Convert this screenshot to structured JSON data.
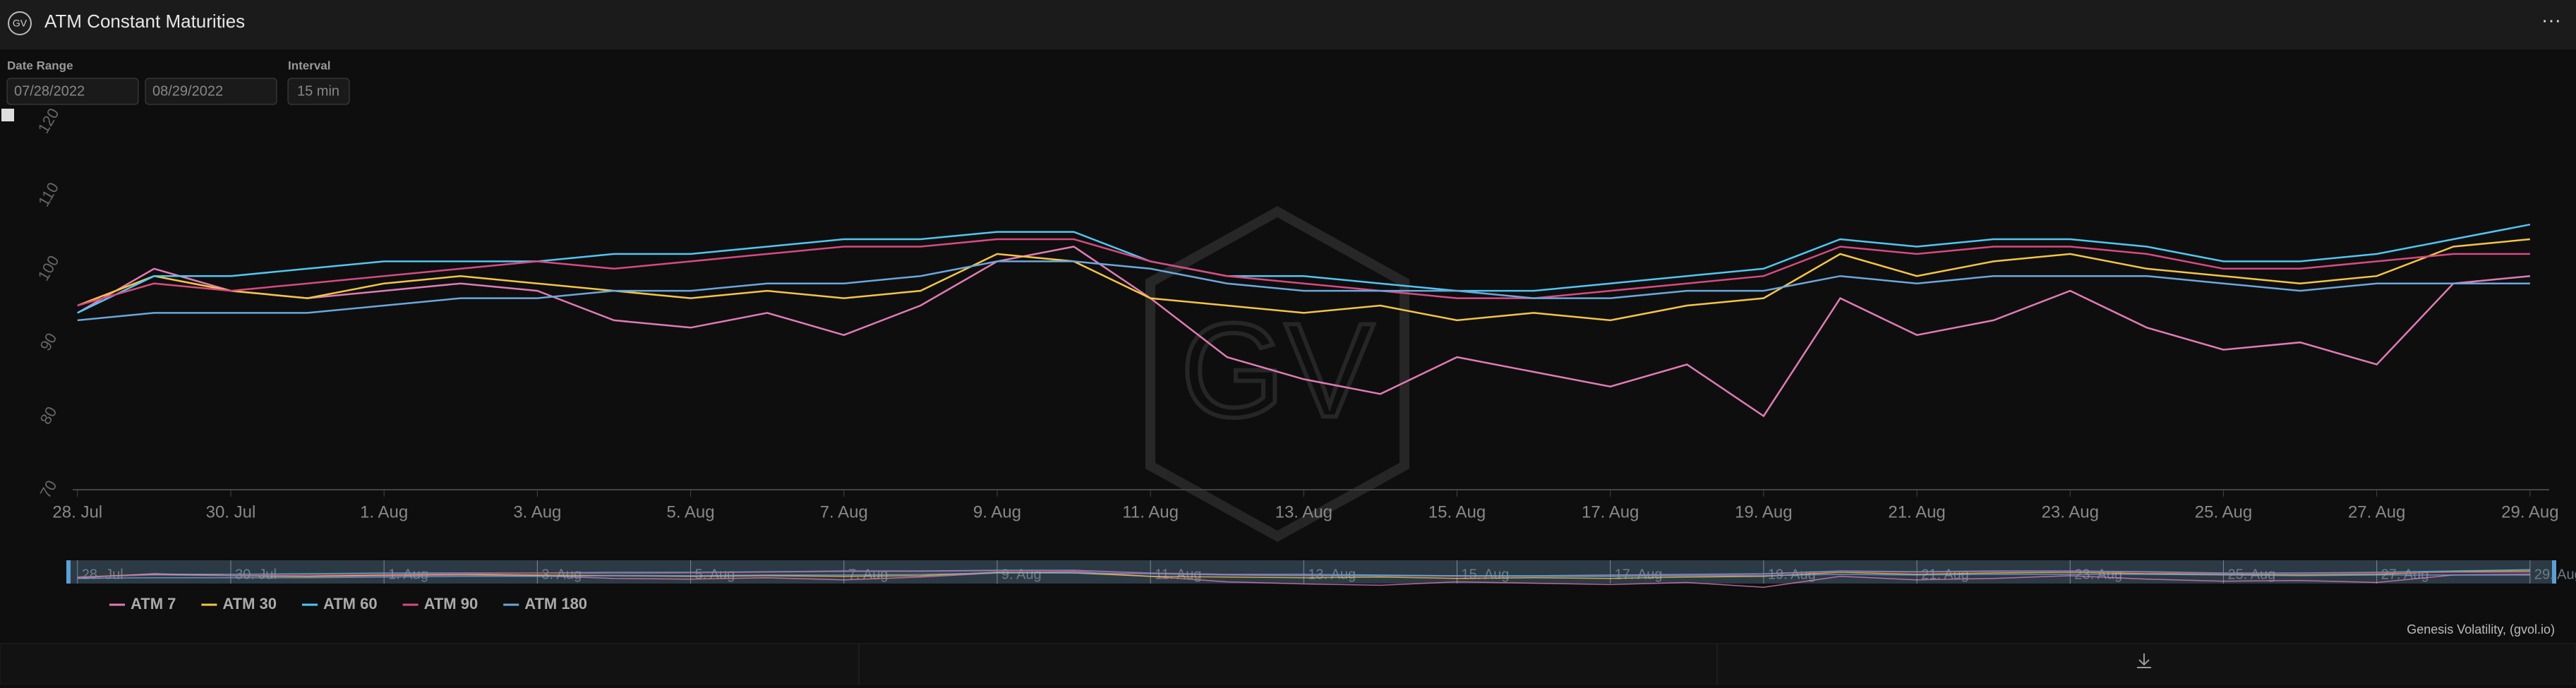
{
  "header": {
    "brand": "GV",
    "title": "ATM Constant Maturities",
    "menu": "···"
  },
  "controls": {
    "date_range_label": "Date Range",
    "start": "07/28/2022",
    "end": "08/29/2022",
    "interval_label": "Interval",
    "interval": "15 min"
  },
  "chart_data": {
    "type": "line",
    "x": [
      "2022-07-28",
      "2022-07-29",
      "2022-07-30",
      "2022-07-31",
      "2022-08-01",
      "2022-08-02",
      "2022-08-03",
      "2022-08-04",
      "2022-08-05",
      "2022-08-06",
      "2022-08-07",
      "2022-08-08",
      "2022-08-09",
      "2022-08-10",
      "2022-08-11",
      "2022-08-12",
      "2022-08-13",
      "2022-08-14",
      "2022-08-15",
      "2022-08-16",
      "2022-08-17",
      "2022-08-18",
      "2022-08-19",
      "2022-08-20",
      "2022-08-21",
      "2022-08-22",
      "2022-08-23",
      "2022-08-24",
      "2022-08-25",
      "2022-08-26",
      "2022-08-27",
      "2022-08-28",
      "2022-08-29"
    ],
    "series": [
      {
        "name": "ATM 7",
        "color": "#e17bb5",
        "values": [
          94,
          100,
          97,
          96,
          97,
          98,
          97,
          93,
          92,
          94,
          91,
          95,
          101,
          103,
          96,
          88,
          85,
          83,
          88,
          86,
          84,
          87,
          80,
          96,
          91,
          93,
          97,
          92,
          89,
          90,
          87,
          98,
          99
        ]
      },
      {
        "name": "ATM 30",
        "color": "#f5c542",
        "values": [
          95,
          99,
          97,
          96,
          98,
          99,
          98,
          97,
          96,
          97,
          96,
          97,
          102,
          101,
          96,
          95,
          94,
          95,
          93,
          94,
          93,
          95,
          96,
          102,
          99,
          101,
          102,
          100,
          99,
          98,
          99,
          103,
          104
        ]
      },
      {
        "name": "ATM 60",
        "color": "#52c6f2",
        "values": [
          94,
          99,
          99,
          100,
          101,
          101,
          101,
          102,
          102,
          103,
          104,
          104,
          105,
          105,
          101,
          99,
          99,
          98,
          97,
          97,
          98,
          99,
          100,
          104,
          103,
          104,
          104,
          103,
          101,
          101,
          102,
          104,
          106
        ]
      },
      {
        "name": "ATM 90",
        "color": "#d84a80",
        "values": [
          95,
          98,
          97,
          98,
          99,
          100,
          101,
          100,
          101,
          102,
          103,
          103,
          104,
          104,
          101,
          99,
          98,
          97,
          96,
          96,
          97,
          98,
          99,
          103,
          102,
          103,
          103,
          102,
          100,
          100,
          101,
          102,
          102
        ]
      },
      {
        "name": "ATM 180",
        "color": "#6aa8dc",
        "values": [
          93,
          94,
          94,
          94,
          95,
          96,
          96,
          97,
          97,
          98,
          98,
          99,
          101,
          101,
          100,
          98,
          97,
          97,
          97,
          96,
          96,
          97,
          97,
          99,
          98,
          99,
          99,
          99,
          98,
          97,
          98,
          98,
          98
        ]
      }
    ],
    "xlim": [
      "2022-07-27T22:30",
      "2022-08-29T06:00"
    ],
    "xticks": [
      {
        "value": "2022-07-28",
        "label": "28. Jul"
      },
      {
        "value": "2022-07-30",
        "label": "30. Jul"
      },
      {
        "value": "2022-08-01",
        "label": "1. Aug"
      },
      {
        "value": "2022-08-03",
        "label": "3. Aug"
      },
      {
        "value": "2022-08-05",
        "label": "5. Aug"
      },
      {
        "value": "2022-08-07",
        "label": "7. Aug"
      },
      {
        "value": "2022-08-09",
        "label": "9. Aug"
      },
      {
        "value": "2022-08-11",
        "label": "11. Aug"
      },
      {
        "value": "2022-08-13",
        "label": "13. Aug"
      },
      {
        "value": "2022-08-15",
        "label": "15. Aug"
      },
      {
        "value": "2022-08-17",
        "label": "17. Aug"
      },
      {
        "value": "2022-08-19",
        "label": "19. Aug"
      },
      {
        "value": "2022-08-21",
        "label": "21. Aug"
      },
      {
        "value": "2022-08-23",
        "label": "23. Aug"
      },
      {
        "value": "2022-08-25",
        "label": "25. Aug"
      },
      {
        "value": "2022-08-27",
        "label": "27. Aug"
      },
      {
        "value": "2022-08-29",
        "label": "29. Aug"
      }
    ],
    "ylim": [
      70,
      120
    ],
    "yticks": [
      70,
      80,
      90,
      100,
      110,
      120
    ],
    "grid": false,
    "legend": "bottom-left"
  },
  "footer": {
    "credit": "Genesis Volatility, (gvol.io)"
  }
}
